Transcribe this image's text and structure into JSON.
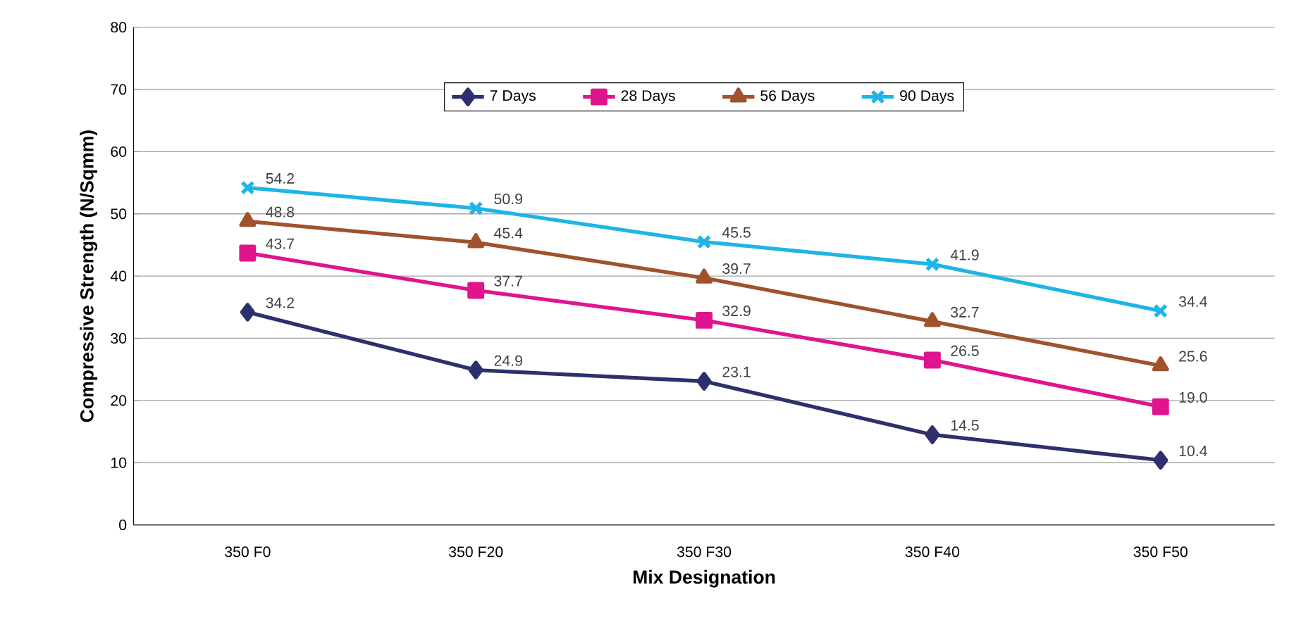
{
  "chart_data": {
    "type": "line",
    "xlabel": "Mix Designation",
    "ylabel": "Compressive Strength (N/Sqmm)",
    "categories": [
      "350 F0",
      "350 F20",
      "350 F30",
      "350 F40",
      "350 F50"
    ],
    "ylim": [
      0,
      80
    ],
    "yticks": [
      0,
      10,
      20,
      30,
      40,
      50,
      60,
      70,
      80
    ],
    "grid": "y",
    "legend": "top",
    "series": [
      {
        "name": "7 Days",
        "color": "#2e2f6e",
        "marker": "diamond",
        "values": [
          34.2,
          24.9,
          23.1,
          14.5,
          10.4
        ],
        "value_labels": [
          "34.2",
          "24.9",
          "23.1",
          "14.5",
          "10.4"
        ]
      },
      {
        "name": "28 Days",
        "color": "#e0148c",
        "marker": "square",
        "values": [
          43.7,
          37.7,
          32.9,
          26.5,
          19.0
        ],
        "value_labels": [
          "43.7",
          "37.7",
          "32.9",
          "26.5",
          "19.0"
        ]
      },
      {
        "name": "56 Days",
        "color": "#a0522d",
        "marker": "triangle",
        "values": [
          48.8,
          45.4,
          39.7,
          32.7,
          25.6
        ],
        "value_labels": [
          "48.8",
          "45.4",
          "39.7",
          "32.7",
          "25.6"
        ]
      },
      {
        "name": "90 Days",
        "color": "#1eb4e6",
        "marker": "cross",
        "values": [
          54.2,
          50.9,
          45.5,
          41.9,
          34.4
        ],
        "value_labels": [
          "54.2",
          "50.9",
          "45.5",
          "41.9",
          "34.4"
        ]
      }
    ]
  }
}
